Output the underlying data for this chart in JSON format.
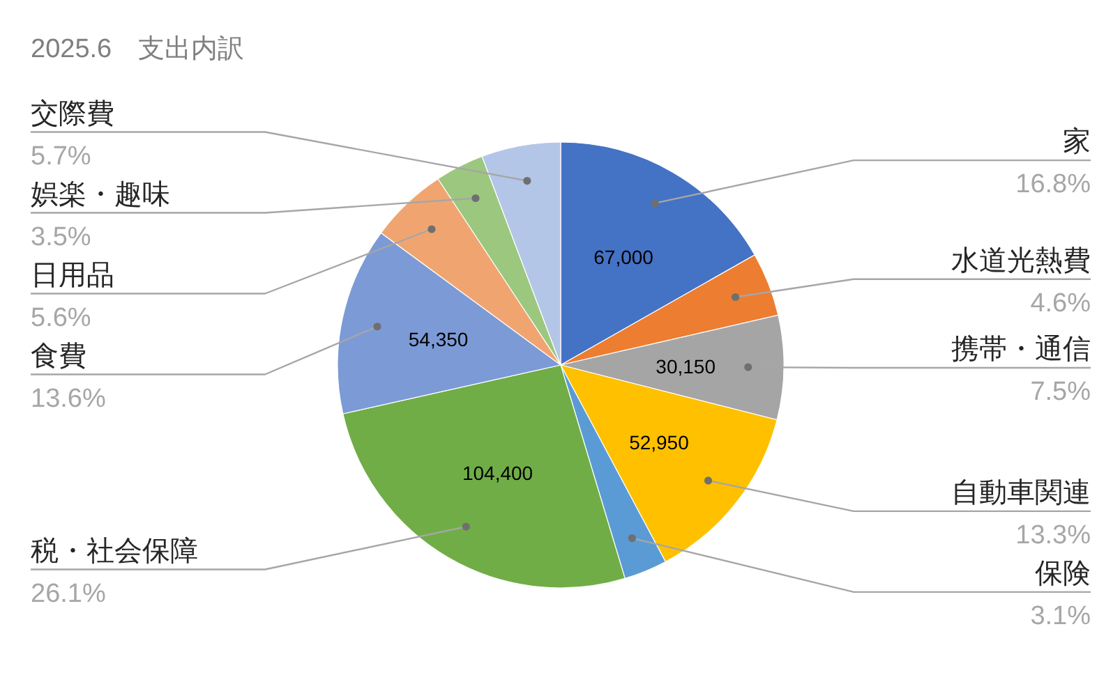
{
  "chart_data": {
    "type": "pie",
    "title": "2025.6　支出内訳",
    "categories": [
      "家",
      "水道光熱費",
      "携帯・通信",
      "自動車関連",
      "保険",
      "税・社会保障",
      "食費",
      "日用品",
      "娯楽・趣味",
      "交際費"
    ],
    "values": [
      67000,
      18500,
      30150,
      52950,
      12500,
      104400,
      54350,
      22500,
      14100,
      22900
    ],
    "colors": [
      "#4472c4",
      "#ed7d31",
      "#a5a5a5",
      "#ffc000",
      "#5b9bd5",
      "#70ad47",
      "#7c9ad5",
      "#f0a571",
      "#9cc77f",
      "#b4c6e7"
    ],
    "value_labels": [
      "67,000",
      null,
      "30,150",
      "52,950",
      null,
      "104,400",
      "54,350",
      null,
      null,
      null
    ],
    "annotations": [
      "16.8%",
      "4.6%",
      "7.5%",
      "13.3%",
      "3.1%",
      "26.1%",
      "13.6%",
      "5.6%",
      "3.5%",
      "5.7%"
    ]
  }
}
